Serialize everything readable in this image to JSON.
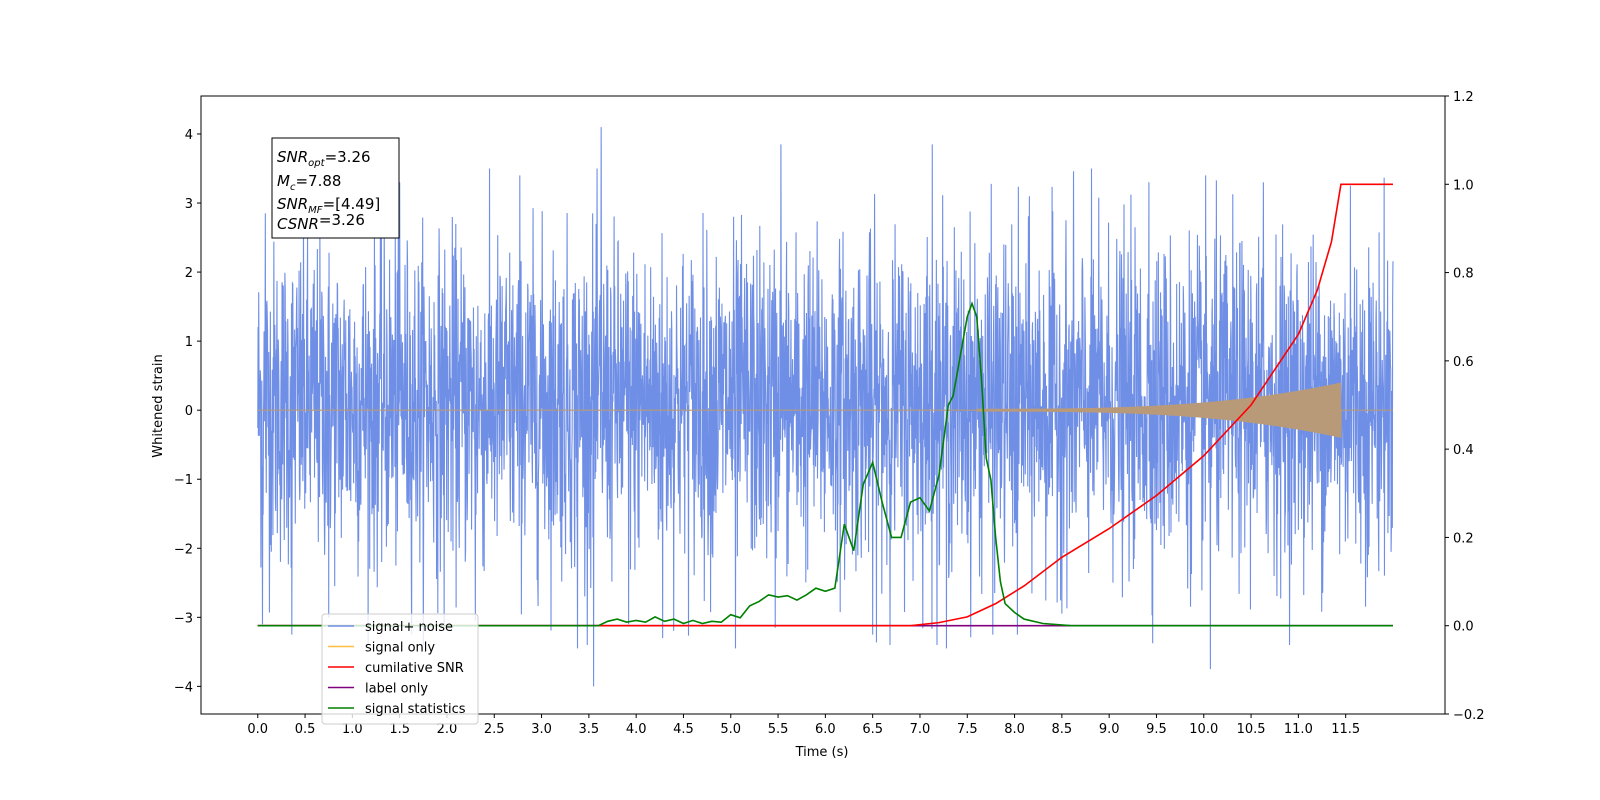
{
  "chart_data": {
    "type": "line",
    "xlabel": "Time (s)",
    "ylabel": "Whitened strain",
    "xlim": [
      -0.6,
      12.55
    ],
    "ylim": [
      -4.4,
      4.55
    ],
    "ylim_right": [
      -0.2,
      1.2
    ],
    "x_ticks": [
      "0.0",
      "0.5",
      "1.0",
      "1.5",
      "2.0",
      "2.5",
      "3.0",
      "3.5",
      "4.0",
      "4.5",
      "5.0",
      "5.5",
      "6.0",
      "6.5",
      "7.0",
      "7.5",
      "8.0",
      "8.5",
      "9.0",
      "9.5",
      "10.0",
      "10.5",
      "11.0",
      "11.5"
    ],
    "y_ticks_left": [
      "−4",
      "−3",
      "−2",
      "−1",
      "0",
      "1",
      "2",
      "3",
      "4"
    ],
    "y_ticks_right": [
      "−0.2",
      "0.0",
      "0.2",
      "0.4",
      "0.6",
      "0.8",
      "1.0",
      "1.2"
    ],
    "grid": false,
    "legend_position": "lower-left",
    "annotations": {
      "snr_opt": {
        "base": "SNR",
        "sub": "opt",
        "value": "=3.26"
      },
      "mc": {
        "base": "M",
        "sub": "c",
        "value": "=7.88"
      },
      "snr_mf": {
        "base": "SNR",
        "sub": "MF",
        "value": "=[4.49]"
      },
      "csnr": {
        "base": "CSNR",
        "sub": "",
        "value": "=3.26"
      }
    },
    "series": [
      {
        "name": "signal+ noise",
        "color": "#6f8fe6",
        "axis": "left",
        "kind": "noise",
        "x_range": [
          0.0,
          12.0
        ],
        "typical_envelope": [
          -2.0,
          2.2
        ],
        "extreme_range": [
          -4.0,
          4.1
        ],
        "spikes": [
          {
            "x": 0.05,
            "y": -3.1
          },
          {
            "x": 0.08,
            "y": 2.85
          },
          {
            "x": 0.36,
            "y": -3.25
          },
          {
            "x": 0.75,
            "y": -3.0
          },
          {
            "x": 1.5,
            "y": 3.3
          },
          {
            "x": 1.97,
            "y": -3.1
          },
          {
            "x": 2.3,
            "y": -3.05
          },
          {
            "x": 2.77,
            "y": 3.4
          },
          {
            "x": 3.38,
            "y": -3.45
          },
          {
            "x": 3.55,
            "y": -4.0
          },
          {
            "x": 3.63,
            "y": 4.1
          },
          {
            "x": 3.92,
            "y": -3.1
          },
          {
            "x": 4.28,
            "y": -3.3
          },
          {
            "x": 5.05,
            "y": -3.45
          },
          {
            "x": 5.53,
            "y": 3.85
          },
          {
            "x": 5.47,
            "y": -3.15
          },
          {
            "x": 6.5,
            "y": -3.25
          },
          {
            "x": 7.13,
            "y": 3.85
          },
          {
            "x": 7.28,
            "y": -3.45
          },
          {
            "x": 7.77,
            "y": -3.25
          },
          {
            "x": 8.03,
            "y": -3.25
          },
          {
            "x": 9.42,
            "y": 3.3
          },
          {
            "x": 10.07,
            "y": -3.75
          },
          {
            "x": 10.63,
            "y": 3.3
          },
          {
            "x": 11.55,
            "y": 3.25
          }
        ]
      },
      {
        "name": "signal only",
        "color": "#ffbf40",
        "axis": "left",
        "kind": "chirp",
        "x_range": [
          0.0,
          12.0
        ],
        "chirp_start": 7.6,
        "chirp_end": 11.45,
        "max_amplitude": 0.4,
        "overlap_color": "#b99a78"
      },
      {
        "name": "cumilative SNR",
        "color": "#ff0000",
        "axis": "right",
        "x": [
          0.0,
          6.9,
          7.2,
          7.5,
          7.8,
          8.1,
          8.5,
          9.0,
          9.5,
          10.0,
          10.5,
          11.0,
          11.2,
          11.35,
          11.45,
          12.0
        ],
        "y": [
          0.0,
          0.0,
          0.007,
          0.02,
          0.05,
          0.09,
          0.155,
          0.22,
          0.295,
          0.385,
          0.5,
          0.66,
          0.76,
          0.87,
          1.0,
          1.0
        ]
      },
      {
        "name": "label only",
        "color": "#800080",
        "axis": "right",
        "x": [
          0.0,
          12.0
        ],
        "y": [
          0.0,
          0.0
        ]
      },
      {
        "name": "signal statistics",
        "color": "#008000",
        "axis": "right",
        "x": [
          0.0,
          3.6,
          3.7,
          3.8,
          3.9,
          4.0,
          4.1,
          4.2,
          4.3,
          4.4,
          4.5,
          4.6,
          4.7,
          4.8,
          4.9,
          5.0,
          5.1,
          5.2,
          5.3,
          5.4,
          5.5,
          5.6,
          5.7,
          5.8,
          5.9,
          6.0,
          6.1,
          6.2,
          6.3,
          6.4,
          6.5,
          6.6,
          6.7,
          6.8,
          6.9,
          7.0,
          7.1,
          7.2,
          7.3,
          7.35,
          7.45,
          7.5,
          7.55,
          7.6,
          7.65,
          7.7,
          7.75,
          7.8,
          7.85,
          7.9,
          7.95,
          8.0,
          8.1,
          8.3,
          8.6,
          12.0
        ],
        "y": [
          0.0,
          0.0,
          0.01,
          0.015,
          0.008,
          0.012,
          0.008,
          0.02,
          0.01,
          0.015,
          0.005,
          0.012,
          0.005,
          0.01,
          0.008,
          0.025,
          0.018,
          0.045,
          0.055,
          0.07,
          0.065,
          0.068,
          0.058,
          0.07,
          0.085,
          0.078,
          0.085,
          0.23,
          0.17,
          0.32,
          0.37,
          0.28,
          0.2,
          0.2,
          0.28,
          0.29,
          0.26,
          0.34,
          0.5,
          0.52,
          0.64,
          0.7,
          0.73,
          0.7,
          0.56,
          0.38,
          0.33,
          0.2,
          0.1,
          0.05,
          0.04,
          0.03,
          0.015,
          0.005,
          0.0,
          0.0
        ]
      }
    ]
  }
}
